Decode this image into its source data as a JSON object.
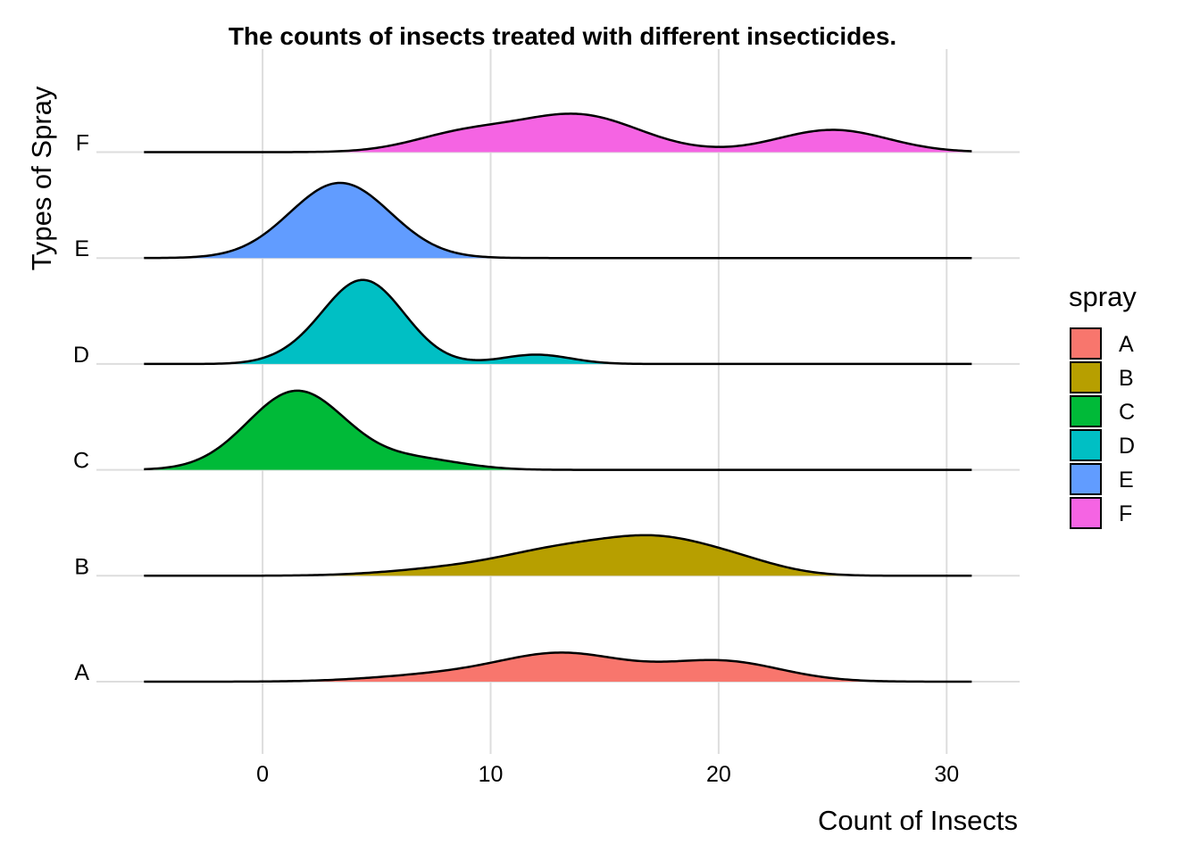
{
  "chart_data": {
    "type": "area",
    "subtype": "ridgeline",
    "title": "The counts of insects treated with different insecticides.",
    "xlabel": "Count of Insects",
    "ylabel": "Types of Spray",
    "xlim": [
      -7.6,
      33.2
    ],
    "x_ticks": [
      0,
      10,
      20,
      30
    ],
    "grid": true,
    "legend": {
      "title": "spray",
      "position": "right",
      "entries": [
        "A",
        "B",
        "C",
        "D",
        "E",
        "F"
      ]
    },
    "categories": [
      "A",
      "B",
      "C",
      "D",
      "E",
      "F"
    ],
    "density_x": [
      -5.2,
      -2,
      0,
      2,
      4,
      6,
      8,
      10,
      12,
      14,
      16,
      18,
      20,
      22,
      24,
      26,
      28,
      31.1
    ],
    "series": [
      {
        "name": "A",
        "color": "#F8766D",
        "peaks": [
          [
            8,
            0.15,
            3.0
          ],
          [
            13.2,
            0.58,
            2.7
          ],
          [
            20.1,
            0.44,
            2.6
          ]
        ]
      },
      {
        "name": "B",
        "color": "#B79F00",
        "peaks": [
          [
            9.0,
            0.18,
            3.0
          ],
          [
            13.0,
            0.42,
            2.4
          ],
          [
            17.3,
            0.74,
            2.5
          ],
          [
            21.0,
            0.21,
            2.0
          ]
        ]
      },
      {
        "name": "C",
        "color": "#00BA38",
        "peaks": [
          [
            1.5,
            1.7,
            2.15
          ],
          [
            6.8,
            0.22,
            2.0
          ]
        ]
      },
      {
        "name": "D",
        "color": "#00BFC4",
        "peaks": [
          [
            4.4,
            1.81,
            1.8
          ],
          [
            12.0,
            0.2,
            1.5
          ],
          [
            1.0,
            0.05,
            1.2
          ]
        ]
      },
      {
        "name": "E",
        "color": "#619CFF",
        "peaks": [
          [
            3.4,
            1.62,
            2.2
          ]
        ]
      },
      {
        "name": "F",
        "color": "#F564E3",
        "peaks": [
          [
            8.7,
            0.36,
            2.2
          ],
          [
            13.8,
            0.8,
            2.7
          ],
          [
            25.0,
            0.48,
            2.4
          ]
        ]
      }
    ]
  }
}
